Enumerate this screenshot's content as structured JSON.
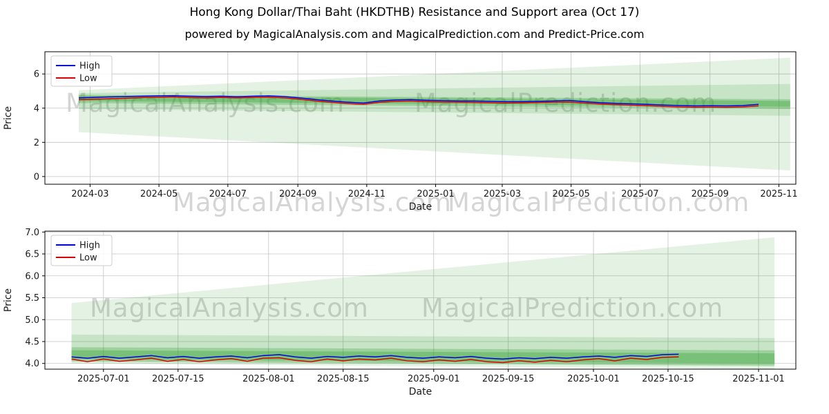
{
  "figure": {
    "title": "Hong Kong Dollar/Thai Baht (HKDTHB) Resistance and Support area (Oct 17)",
    "subtitle": "powered by MagicalAnalysis.com and MagicalPrediction.com and Predict-Price.com"
  },
  "watermarks": {
    "left_text": "MagicalAnalysis.com",
    "right_text": "MagicalPrediction.com"
  },
  "chart_data": [
    {
      "type": "line",
      "title": "",
      "xlabel": "Date",
      "ylabel": "Price",
      "x_note": "x values are days since 2024-01-21",
      "x_domain": [
        0,
        665
      ],
      "ylim": [
        -0.45,
        7.3
      ],
      "grid": true,
      "grid_color": "#c4c4c4",
      "band_color": "#2f9e2f",
      "legend_loc": "upper left",
      "xticks": [
        {
          "pos": 40,
          "label": "2024-03"
        },
        {
          "pos": 101,
          "label": "2024-05"
        },
        {
          "pos": 162,
          "label": "2024-07"
        },
        {
          "pos": 224,
          "label": "2024-09"
        },
        {
          "pos": 285,
          "label": "2024-11"
        },
        {
          "pos": 346,
          "label": "2025-01"
        },
        {
          "pos": 405,
          "label": "2025-03"
        },
        {
          "pos": 466,
          "label": "2025-05"
        },
        {
          "pos": 527,
          "label": "2025-07"
        },
        {
          "pos": 589,
          "label": "2025-09"
        },
        {
          "pos": 650,
          "label": "2025-11"
        }
      ],
      "yticks": [
        {
          "v": 0,
          "label": "0"
        },
        {
          "v": 2,
          "label": "2"
        },
        {
          "v": 4,
          "label": "4"
        },
        {
          "v": 6,
          "label": "6"
        }
      ],
      "bands": [
        {
          "x": [
            30,
            660
          ],
          "top": [
            5.05,
            6.95
          ],
          "bottom": [
            2.6,
            0.35
          ],
          "opacity": 0.13
        },
        {
          "x": [
            30,
            660
          ],
          "top": [
            4.88,
            5.42
          ],
          "bottom": [
            3.95,
            3.55
          ],
          "opacity": 0.16
        },
        {
          "x": [
            30,
            660
          ],
          "top": [
            4.78,
            4.52
          ],
          "bottom": [
            4.3,
            3.95
          ],
          "opacity": 0.28
        },
        {
          "x": [
            30,
            660
          ],
          "top": [
            4.72,
            4.42
          ],
          "bottom": [
            4.42,
            4.08
          ],
          "opacity": 0.32
        }
      ],
      "legend": [
        {
          "label": "High",
          "color": "#0000dd"
        },
        {
          "label": "Low",
          "color": "#dd0000"
        }
      ],
      "series": [
        {
          "name": "High",
          "color": "#0000dd",
          "x": [
            30,
            44,
            58,
            72,
            86,
            100,
            114,
            128,
            142,
            156,
            170,
            184,
            198,
            212,
            226,
            240,
            254,
            268,
            282,
            296,
            310,
            324,
            338,
            352,
            366,
            380,
            394,
            408,
            422,
            436,
            450,
            464,
            478,
            492,
            506,
            520,
            534,
            548,
            562,
            576,
            590,
            604,
            618,
            632
          ],
          "y": [
            4.6,
            4.63,
            4.66,
            4.68,
            4.7,
            4.72,
            4.73,
            4.7,
            4.68,
            4.7,
            4.67,
            4.7,
            4.72,
            4.68,
            4.6,
            4.5,
            4.42,
            4.35,
            4.3,
            4.42,
            4.48,
            4.5,
            4.46,
            4.44,
            4.42,
            4.42,
            4.4,
            4.38,
            4.38,
            4.4,
            4.42,
            4.45,
            4.38,
            4.32,
            4.28,
            4.25,
            4.22,
            4.18,
            4.15,
            4.13,
            4.14,
            4.13,
            4.15,
            4.22
          ]
        },
        {
          "name": "Low",
          "color": "#dd0000",
          "x": [
            30,
            44,
            58,
            72,
            86,
            100,
            114,
            128,
            142,
            156,
            170,
            184,
            198,
            212,
            226,
            240,
            254,
            268,
            282,
            296,
            310,
            324,
            338,
            352,
            366,
            380,
            394,
            408,
            422,
            436,
            450,
            464,
            478,
            492,
            506,
            520,
            534,
            548,
            562,
            576,
            590,
            604,
            618,
            632
          ],
          "y": [
            4.5,
            4.52,
            4.55,
            4.58,
            4.62,
            4.64,
            4.66,
            4.62,
            4.6,
            4.63,
            4.6,
            4.63,
            4.65,
            4.6,
            4.52,
            4.42,
            4.34,
            4.27,
            4.22,
            4.34,
            4.4,
            4.42,
            4.38,
            4.36,
            4.35,
            4.34,
            4.32,
            4.3,
            4.31,
            4.33,
            4.35,
            4.36,
            4.3,
            4.24,
            4.2,
            4.17,
            4.14,
            4.1,
            4.07,
            4.05,
            4.06,
            4.05,
            4.07,
            4.13
          ]
        }
      ]
    },
    {
      "type": "line",
      "title": "",
      "xlabel": "Date",
      "ylabel": "Price",
      "x_note": "x values are days since 2025-06-20",
      "x_domain": [
        0,
        141
      ],
      "ylim": [
        3.87,
        7.02
      ],
      "grid": true,
      "grid_color": "#c4c4c4",
      "band_color": "#2f9e2f",
      "legend_loc": "upper left",
      "xticks": [
        {
          "pos": 11,
          "label": "2025-07-01"
        },
        {
          "pos": 25,
          "label": "2025-07-15"
        },
        {
          "pos": 42,
          "label": "2025-08-01"
        },
        {
          "pos": 56,
          "label": "2025-08-15"
        },
        {
          "pos": 73,
          "label": "2025-09-01"
        },
        {
          "pos": 87,
          "label": "2025-09-15"
        },
        {
          "pos": 103,
          "label": "2025-10-01"
        },
        {
          "pos": 117,
          "label": "2025-10-15"
        },
        {
          "pos": 134,
          "label": "2025-11-01"
        }
      ],
      "yticks": [
        {
          "v": 4.0,
          "label": "4.0"
        },
        {
          "v": 4.5,
          "label": "4.5"
        },
        {
          "v": 5.0,
          "label": "5.0"
        },
        {
          "v": 5.5,
          "label": "5.5"
        },
        {
          "v": 6.0,
          "label": "6.0"
        },
        {
          "v": 6.5,
          "label": "6.5"
        },
        {
          "v": 7.0,
          "label": "7.0"
        }
      ],
      "bands": [
        {
          "x": [
            5,
            137
          ],
          "top": [
            5.38,
            6.88
          ],
          "bottom": [
            4.0,
            3.87
          ],
          "opacity": 0.13
        },
        {
          "x": [
            5,
            137
          ],
          "top": [
            4.66,
            4.58
          ],
          "bottom": [
            4.06,
            3.96
          ],
          "opacity": 0.16
        },
        {
          "x": [
            5,
            137
          ],
          "top": [
            4.37,
            4.3
          ],
          "bottom": [
            4.04,
            3.94
          ],
          "opacity": 0.28
        },
        {
          "x": [
            5,
            137
          ],
          "top": [
            4.3,
            4.23
          ],
          "bottom": [
            4.1,
            4.0
          ],
          "opacity": 0.32
        }
      ],
      "legend": [
        {
          "label": "High",
          "color": "#0000dd"
        },
        {
          "label": "Low",
          "color": "#dd0000"
        }
      ],
      "series": [
        {
          "name": "High",
          "color": "#0000dd",
          "x": [
            5,
            8,
            11,
            14,
            17,
            20,
            23,
            26,
            29,
            32,
            35,
            38,
            41,
            44,
            47,
            50,
            53,
            56,
            59,
            62,
            65,
            68,
            71,
            74,
            77,
            80,
            83,
            86,
            89,
            92,
            95,
            98,
            101,
            104,
            107,
            110,
            113,
            116,
            119
          ],
          "y": [
            4.15,
            4.12,
            4.16,
            4.12,
            4.15,
            4.18,
            4.13,
            4.16,
            4.12,
            4.15,
            4.17,
            4.13,
            4.18,
            4.2,
            4.15,
            4.12,
            4.16,
            4.14,
            4.17,
            4.15,
            4.18,
            4.14,
            4.12,
            4.15,
            4.13,
            4.16,
            4.12,
            4.1,
            4.13,
            4.11,
            4.14,
            4.12,
            4.15,
            4.17,
            4.14,
            4.18,
            4.16,
            4.2,
            4.21
          ]
        },
        {
          "name": "Low",
          "color": "#dd0000",
          "x": [
            5,
            8,
            11,
            14,
            17,
            20,
            23,
            26,
            29,
            32,
            35,
            38,
            41,
            44,
            47,
            50,
            53,
            56,
            59,
            62,
            65,
            68,
            71,
            74,
            77,
            80,
            83,
            86,
            89,
            92,
            95,
            98,
            101,
            104,
            107,
            110,
            113,
            116,
            119
          ],
          "y": [
            4.1,
            4.04,
            4.1,
            4.05,
            4.08,
            4.12,
            4.05,
            4.09,
            4.04,
            4.08,
            4.11,
            4.05,
            4.12,
            4.13,
            4.07,
            4.04,
            4.1,
            4.06,
            4.1,
            4.08,
            4.12,
            4.06,
            4.04,
            4.08,
            4.05,
            4.09,
            4.04,
            4.02,
            4.06,
            4.03,
            4.07,
            4.04,
            4.08,
            4.11,
            4.06,
            4.12,
            4.09,
            4.14,
            4.15
          ]
        }
      ]
    }
  ]
}
